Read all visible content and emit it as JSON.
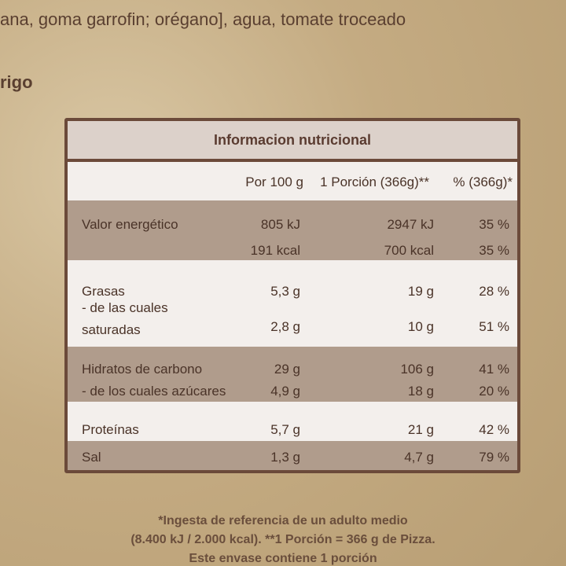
{
  "header": {
    "lines": [
      "ana, goma garrofin; orégano], agua, tomate troceado",
      "rigo"
    ]
  },
  "table": {
    "title": "Informacion nutricional",
    "columns": [
      "Por 100 g",
      "1 Porción (366g)**",
      "% (366g)*"
    ],
    "groups": [
      {
        "rows": [
          {
            "label": "Valor energético",
            "values": [
              "805 kJ",
              "2947 kJ",
              "35 %"
            ]
          },
          {
            "values": [
              "191 kcal",
              "700 kcal",
              "35 %"
            ]
          }
        ]
      },
      {
        "rows": [
          {
            "label": "Grasas",
            "values": [
              "5,3 g",
              "19 g",
              "28 %"
            ]
          },
          {
            "label": "- de las cuales saturadas",
            "values": [
              "2,8 g",
              "10 g",
              "51 %"
            ]
          }
        ]
      },
      {
        "rows": [
          {
            "label": "Hidratos de carbono",
            "values": [
              "29 g",
              "106 g",
              "41 %"
            ]
          },
          {
            "label": "- de los cuales azúcares",
            "values": [
              "4,9 g",
              "18 g",
              "20 %"
            ]
          }
        ]
      },
      {
        "rows": [
          {
            "label": "Proteínas",
            "values": [
              "5,7 g",
              "21 g",
              "42 %"
            ]
          }
        ]
      },
      {
        "rows": [
          {
            "label": "Sal",
            "values": [
              "1,3 g",
              "4,7 g",
              "79 %"
            ]
          }
        ]
      }
    ]
  },
  "footnotes": [
    "*Ingesta de referencia de un adulto medio",
    "(8.400 kJ / 2.000 kcal). **1 Porción = 366 g de Pizza.",
    "Este envase contiene 1 porción"
  ]
}
